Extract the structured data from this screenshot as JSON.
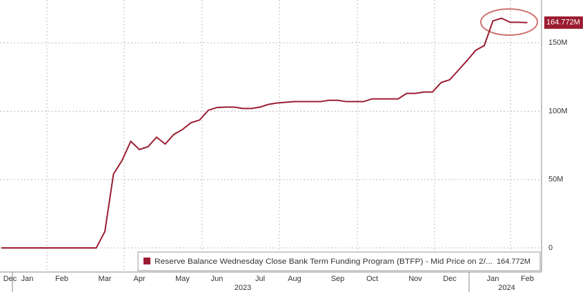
{
  "chart_data": {
    "type": "line",
    "categories": [
      null,
      "Dec",
      null,
      "Jan",
      null,
      null,
      null,
      "Feb",
      null,
      null,
      null,
      null,
      "Mar",
      null,
      null,
      null,
      "Apr",
      null,
      null,
      null,
      null,
      "May",
      null,
      null,
      null,
      "Jun",
      null,
      null,
      null,
      null,
      "Jul",
      null,
      null,
      null,
      "Aug",
      null,
      null,
      null,
      null,
      "Sep",
      null,
      null,
      null,
      "Oct",
      null,
      null,
      null,
      null,
      "Nov",
      null,
      null,
      null,
      "Dec",
      null,
      null,
      null,
      null,
      "Jan",
      null,
      null,
      null,
      "Feb"
    ],
    "year_labels": [
      "2023",
      "2024"
    ],
    "series": [
      {
        "name": "Reserve Balance Wednesday Close Bank Term Funding Program (BTFP) - Mid Price on 2/...",
        "color": "#9b1b30",
        "values": [
          0,
          0,
          0,
          0,
          0,
          0,
          0,
          0,
          0,
          0,
          0,
          0,
          12,
          54,
          64,
          78,
          72,
          74,
          81,
          76,
          83,
          86.6,
          91.6,
          93.6,
          100.7,
          102.7,
          103,
          103,
          102,
          102,
          103,
          105,
          106,
          106.5,
          107,
          107,
          107,
          107,
          108,
          108,
          107,
          107,
          107,
          109,
          109,
          109,
          109,
          113,
          113,
          114,
          114,
          121,
          123,
          130,
          137,
          144.5,
          148,
          166,
          168,
          165,
          165,
          164.772
        ],
        "value_labels": [
          null,
          null,
          null,
          null,
          null,
          null,
          null,
          null,
          null,
          null,
          null,
          null,
          null,
          null,
          null,
          null,
          null,
          null,
          null,
          null,
          null,
          null,
          null,
          null,
          null,
          null,
          null,
          null,
          null,
          null,
          null,
          null,
          null,
          null,
          null,
          null,
          null,
          null,
          null,
          null,
          null,
          null,
          null,
          null,
          null,
          null,
          null,
          null,
          null,
          null,
          null,
          null,
          null,
          null,
          null,
          null,
          null,
          null,
          null,
          null,
          null,
          "164.772M"
        ]
      }
    ],
    "ylim": [
      -17.6,
      181.3
    ],
    "yticks": [
      0,
      {
        "value": 50,
        "label": "50M"
      },
      {
        "value": 100,
        "label": "100M"
      },
      {
        "value": 150,
        "label": "150M"
      }
    ],
    "grid": true
  }
}
